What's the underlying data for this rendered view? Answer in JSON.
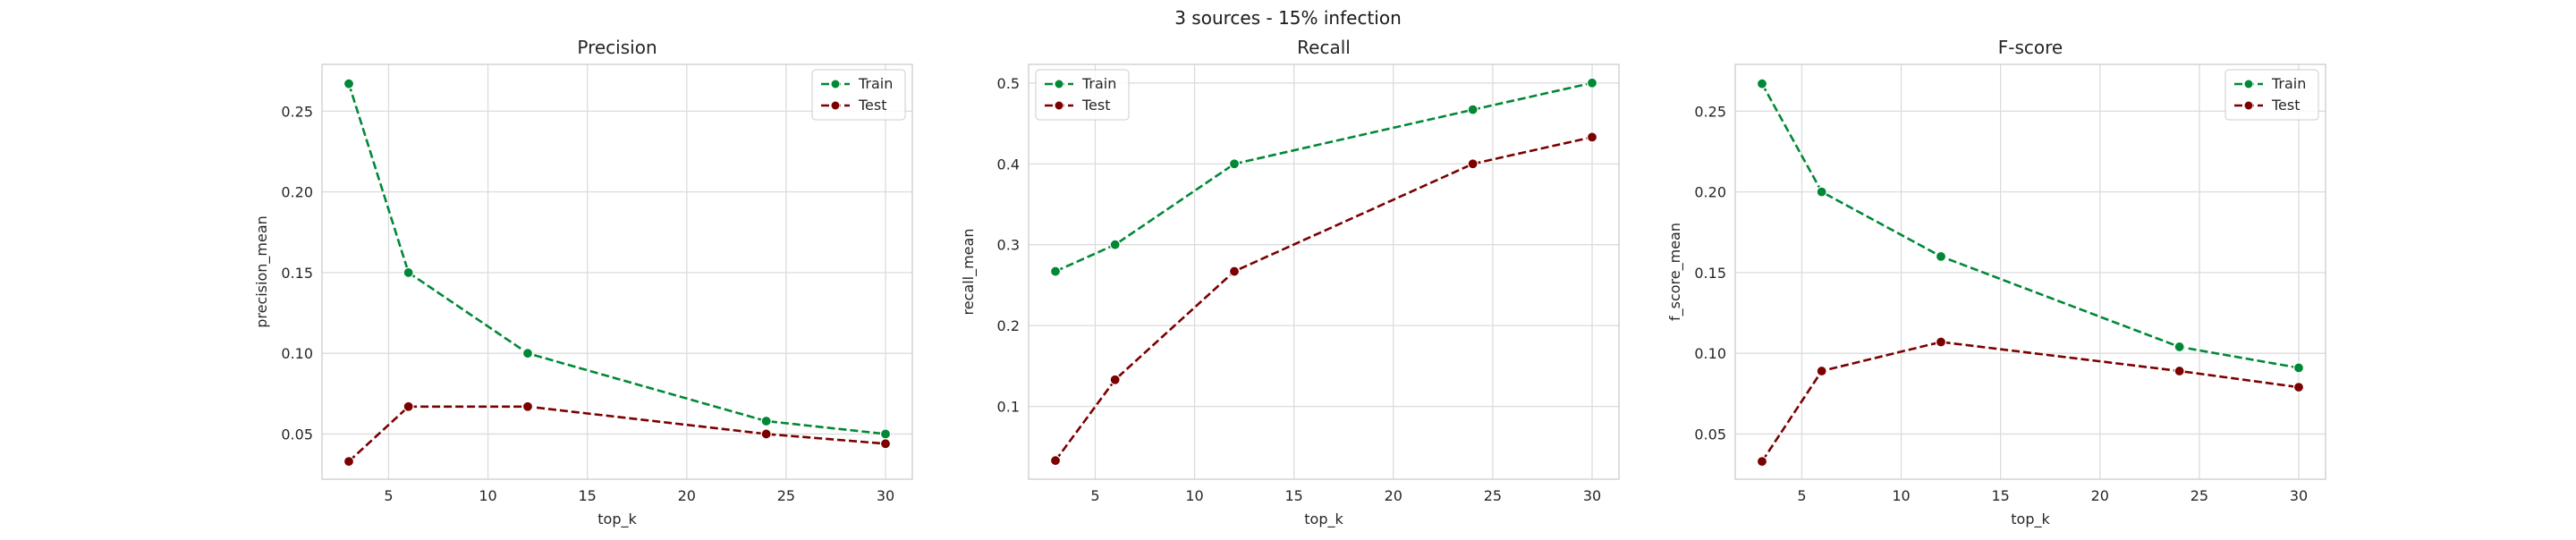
{
  "figure": {
    "suptitle": "3 sources - 15% infection"
  },
  "colors": {
    "train": "#008837",
    "test": "#7b0000",
    "grid": "#dcdcdc",
    "axis": "#cccccc"
  },
  "chart_data": [
    {
      "type": "line",
      "title": "Precision",
      "xlabel": "top_k",
      "ylabel": "precision_mean",
      "xlim": [
        1.65,
        31.35
      ],
      "ylim": [
        0.022,
        0.279
      ],
      "xticks": [
        5,
        10,
        15,
        20,
        25,
        30
      ],
      "yticks": [
        0.05,
        0.1,
        0.15,
        0.2,
        0.25
      ],
      "yticklabels": [
        "0.05",
        "0.10",
        "0.15",
        "0.20",
        "0.25"
      ],
      "grid": true,
      "legend": "upper right",
      "x": [
        3,
        6,
        12,
        24,
        30
      ],
      "series": [
        {
          "name": "Train",
          "values": [
            0.267,
            0.15,
            0.1,
            0.058,
            0.05
          ]
        },
        {
          "name": "Test",
          "values": [
            0.033,
            0.067,
            0.067,
            0.05,
            0.044
          ]
        }
      ]
    },
    {
      "type": "line",
      "title": "Recall",
      "xlabel": "top_k",
      "ylabel": "recall_mean",
      "xlim": [
        1.65,
        31.35
      ],
      "ylim": [
        0.01,
        0.523
      ],
      "xticks": [
        5,
        10,
        15,
        20,
        25,
        30
      ],
      "yticks": [
        0.1,
        0.2,
        0.3,
        0.4,
        0.5
      ],
      "yticklabels": [
        "0.1",
        "0.2",
        "0.3",
        "0.4",
        "0.5"
      ],
      "grid": true,
      "legend": "upper left",
      "x": [
        3,
        6,
        12,
        24,
        30
      ],
      "series": [
        {
          "name": "Train",
          "values": [
            0.267,
            0.3,
            0.4,
            0.467,
            0.5
          ]
        },
        {
          "name": "Test",
          "values": [
            0.033,
            0.133,
            0.267,
            0.4,
            0.433
          ]
        }
      ]
    },
    {
      "type": "line",
      "title": "F-score",
      "xlabel": "top_k",
      "ylabel": "f_score_mean",
      "xlim": [
        1.65,
        31.35
      ],
      "ylim": [
        0.022,
        0.279
      ],
      "xticks": [
        5,
        10,
        15,
        20,
        25,
        30
      ],
      "yticks": [
        0.05,
        0.1,
        0.15,
        0.2,
        0.25
      ],
      "yticklabels": [
        "0.05",
        "0.10",
        "0.15",
        "0.20",
        "0.25"
      ],
      "grid": true,
      "legend": "upper right",
      "x": [
        3,
        6,
        12,
        24,
        30
      ],
      "series": [
        {
          "name": "Train",
          "values": [
            0.267,
            0.2,
            0.16,
            0.104,
            0.091
          ]
        },
        {
          "name": "Test",
          "values": [
            0.033,
            0.089,
            0.107,
            0.089,
            0.079
          ]
        }
      ]
    }
  ]
}
